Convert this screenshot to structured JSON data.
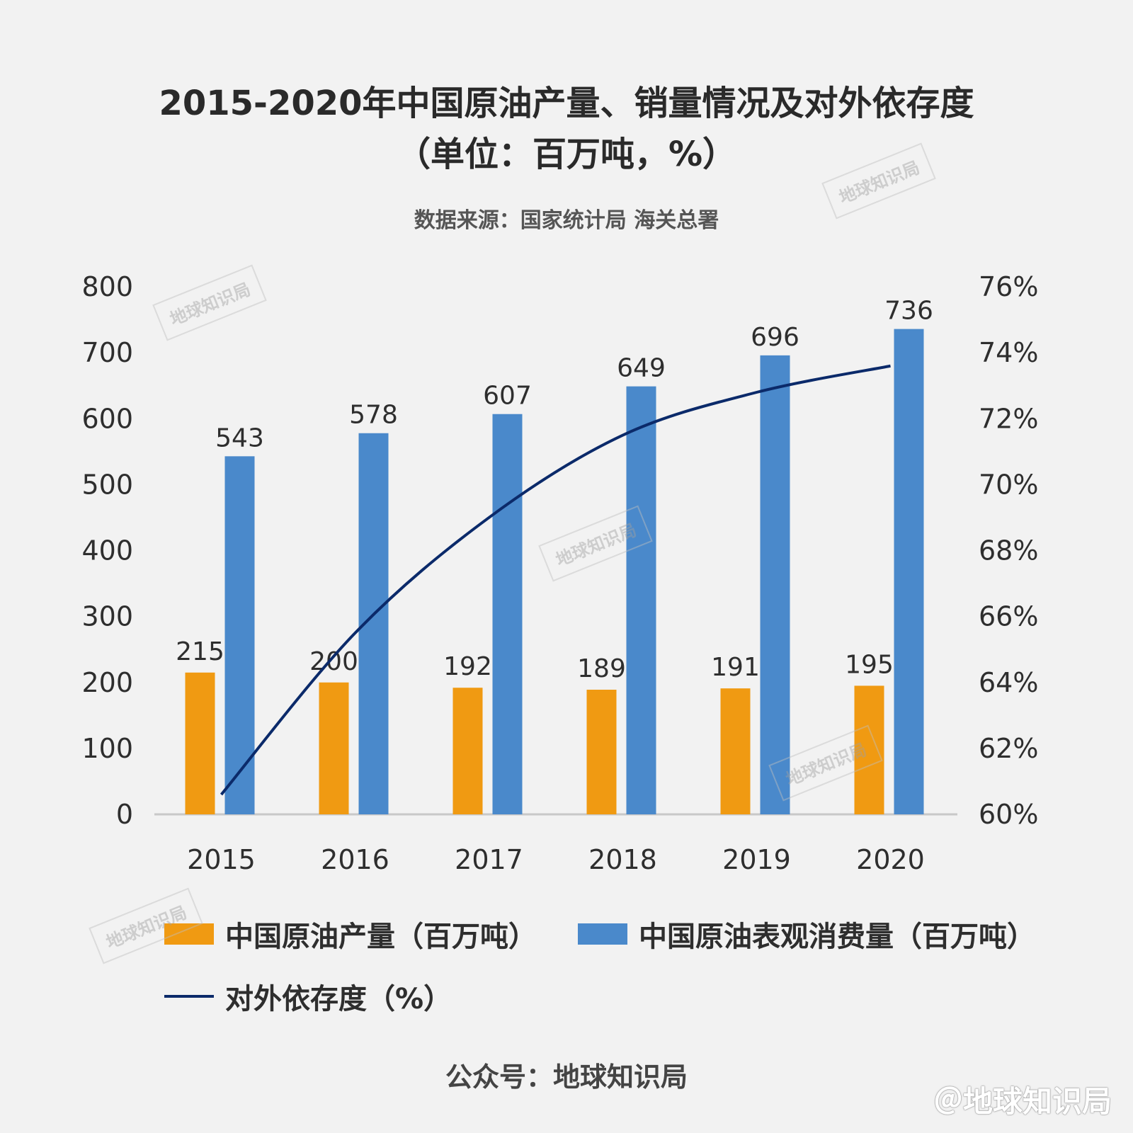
{
  "title_line1": "2015-2020年中国原油产量、销量情况及对外依存度",
  "title_line2": "（单位：百万吨，%）",
  "source": "数据来源：国家统计局 海关总署",
  "footer": "公众号：地球知识局",
  "credit": "＠地球知识局",
  "watermark": "地球知识局",
  "legend": {
    "production": "中国原油产量（百万吨）",
    "consumption": "中国原油表观消费量（百万吨）",
    "dependence": "对外依存度（%）"
  },
  "colors": {
    "production": "#f09a12",
    "consumption": "#4a89cb",
    "dependence": "#0b2a6a"
  },
  "chart_data": {
    "type": "bar",
    "categories": [
      "2015",
      "2016",
      "2017",
      "2018",
      "2019",
      "2020"
    ],
    "series": [
      {
        "name": "中国原油产量（百万吨）",
        "type": "bar",
        "axis": "left",
        "values": [
          215,
          200,
          192,
          189,
          191,
          195
        ]
      },
      {
        "name": "中国原油表观消费量（百万吨）",
        "type": "bar",
        "axis": "left",
        "values": [
          543,
          578,
          607,
          649,
          696,
          736
        ]
      },
      {
        "name": "对外依存度（%）",
        "type": "line",
        "axis": "right",
        "values": [
          60.6,
          65.5,
          69.0,
          71.5,
          72.8,
          73.6
        ]
      }
    ],
    "y_left": {
      "ticks": [
        "0",
        "100",
        "200",
        "300",
        "400",
        "500",
        "600",
        "700",
        "800"
      ],
      "ylim": [
        0,
        800
      ]
    },
    "y_right": {
      "ticks": [
        "60%",
        "62%",
        "64%",
        "66%",
        "68%",
        "70%",
        "72%",
        "74%",
        "76%"
      ],
      "ylim": [
        60,
        76
      ]
    },
    "grid": false,
    "legend_position": "bottom"
  }
}
